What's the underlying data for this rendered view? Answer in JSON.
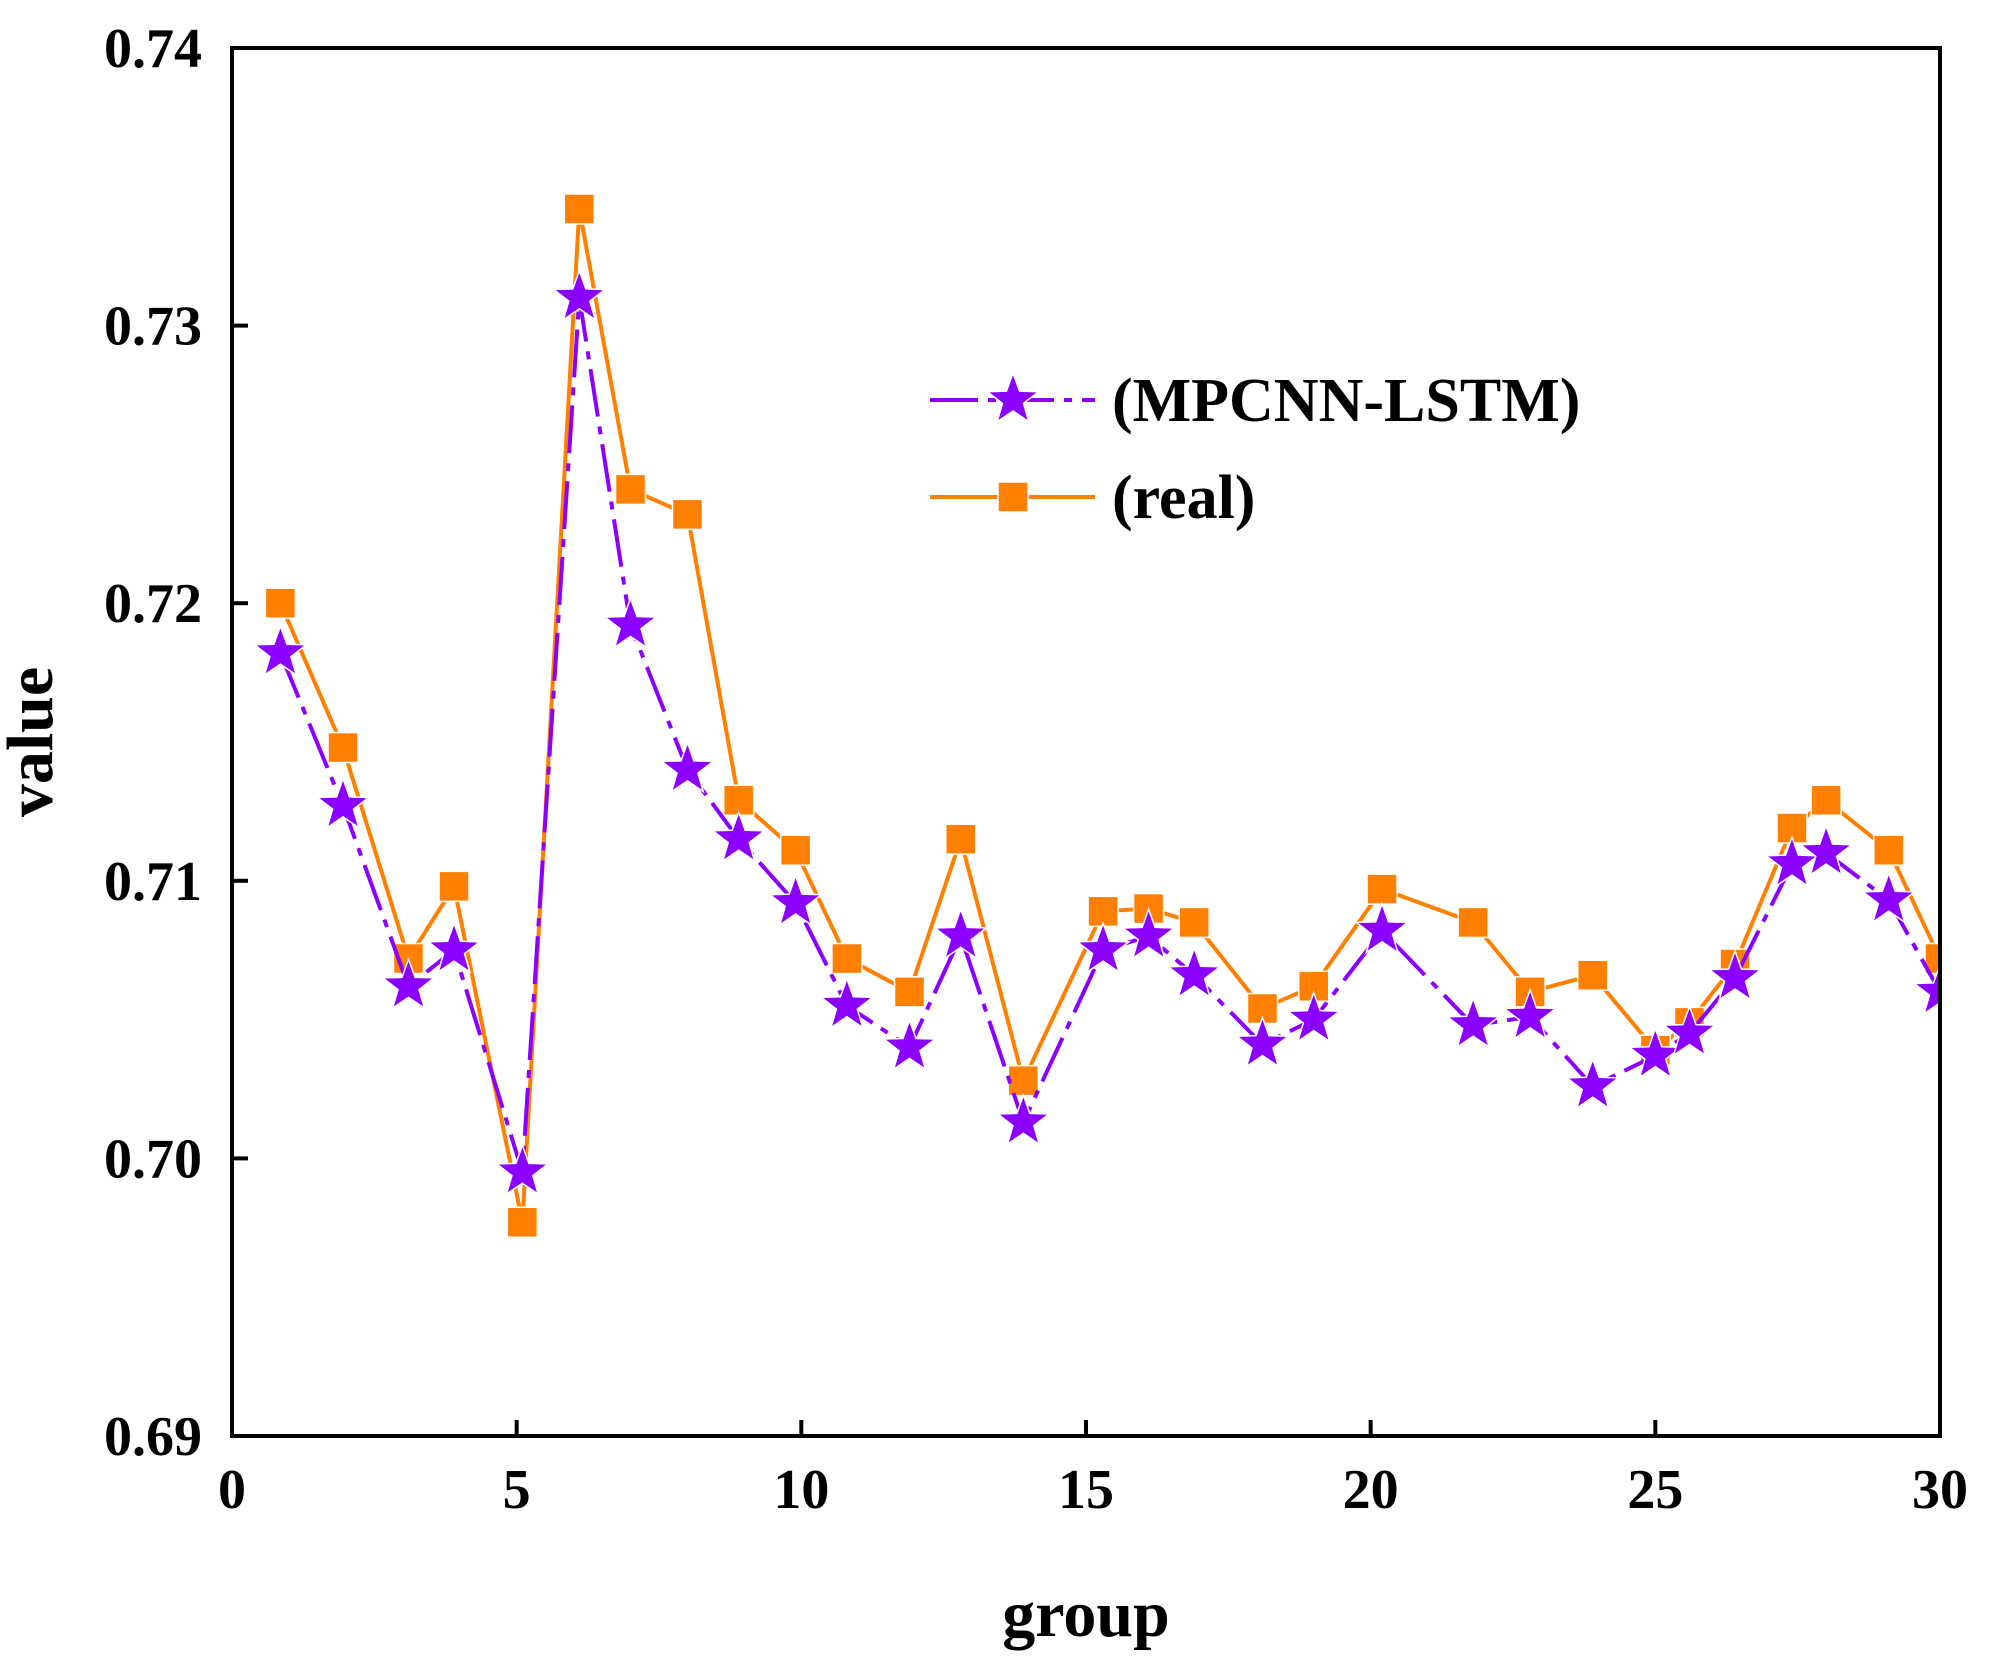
{
  "chart_data": {
    "type": "line",
    "title": "",
    "xlabel": "group",
    "ylabel": "value",
    "xlim": [
      0,
      30
    ],
    "ylim": [
      0.69,
      0.74
    ],
    "xticks": [
      0,
      5,
      10,
      15,
      20,
      25,
      30
    ],
    "xtick_labels": [
      "0",
      "5",
      "10",
      "15",
      "20",
      "25",
      "30"
    ],
    "yticks": [
      0.69,
      0.7,
      0.71,
      0.72,
      0.73,
      0.74
    ],
    "ytick_labels": [
      "0.69",
      "0.70",
      "0.71",
      "0.72",
      "0.73",
      "0.74"
    ],
    "grid": false,
    "legend_position": "upper-center-right",
    "series": [
      {
        "name": "(MPCNN-LSTM)",
        "marker": "star",
        "line_style": "dash-dot",
        "color": "#8B00FF",
        "x": [
          0.85,
          1.95,
          3.1,
          3.9,
          5.1,
          6.1,
          7.0,
          8.0,
          8.9,
          9.9,
          10.8,
          11.9,
          12.8,
          13.9,
          15.3,
          16.1,
          16.9,
          18.1,
          19.0,
          20.2,
          21.8,
          22.8,
          23.9,
          25.0,
          25.6,
          26.4,
          27.4,
          28.0,
          29.1,
          30.0
        ],
        "y": [
          0.7182,
          0.7127,
          0.7062,
          0.7075,
          0.6995,
          0.731,
          0.7192,
          0.714,
          0.7115,
          0.7092,
          0.7055,
          0.704,
          0.708,
          0.7013,
          0.7075,
          0.708,
          0.7066,
          0.7041,
          0.705,
          0.7082,
          0.7048,
          0.7051,
          0.7026,
          0.7037,
          0.7045,
          0.7065,
          0.7106,
          0.711,
          0.7093,
          0.706
        ]
      },
      {
        "name": "(real)",
        "marker": "square",
        "line_style": "solid",
        "color": "#FF8000",
        "x": [
          0.85,
          1.95,
          3.1,
          3.9,
          5.1,
          6.1,
          7.0,
          8.0,
          8.9,
          9.9,
          10.8,
          11.9,
          12.8,
          13.9,
          15.3,
          16.1,
          16.9,
          18.1,
          19.0,
          20.2,
          21.8,
          22.8,
          23.9,
          25.0,
          25.6,
          26.4,
          27.4,
          28.0,
          29.1,
          30.0
        ],
        "y": [
          0.72,
          0.7148,
          0.7072,
          0.7098,
          0.6977,
          0.7342,
          0.7241,
          0.7232,
          0.7129,
          0.7111,
          0.7072,
          0.706,
          0.7115,
          0.7028,
          0.7089,
          0.709,
          0.7085,
          0.7054,
          0.7062,
          0.7097,
          0.7085,
          0.706,
          0.7066,
          0.7039,
          0.7049,
          0.707,
          0.7119,
          0.7129,
          0.7111,
          0.7072
        ]
      }
    ]
  }
}
